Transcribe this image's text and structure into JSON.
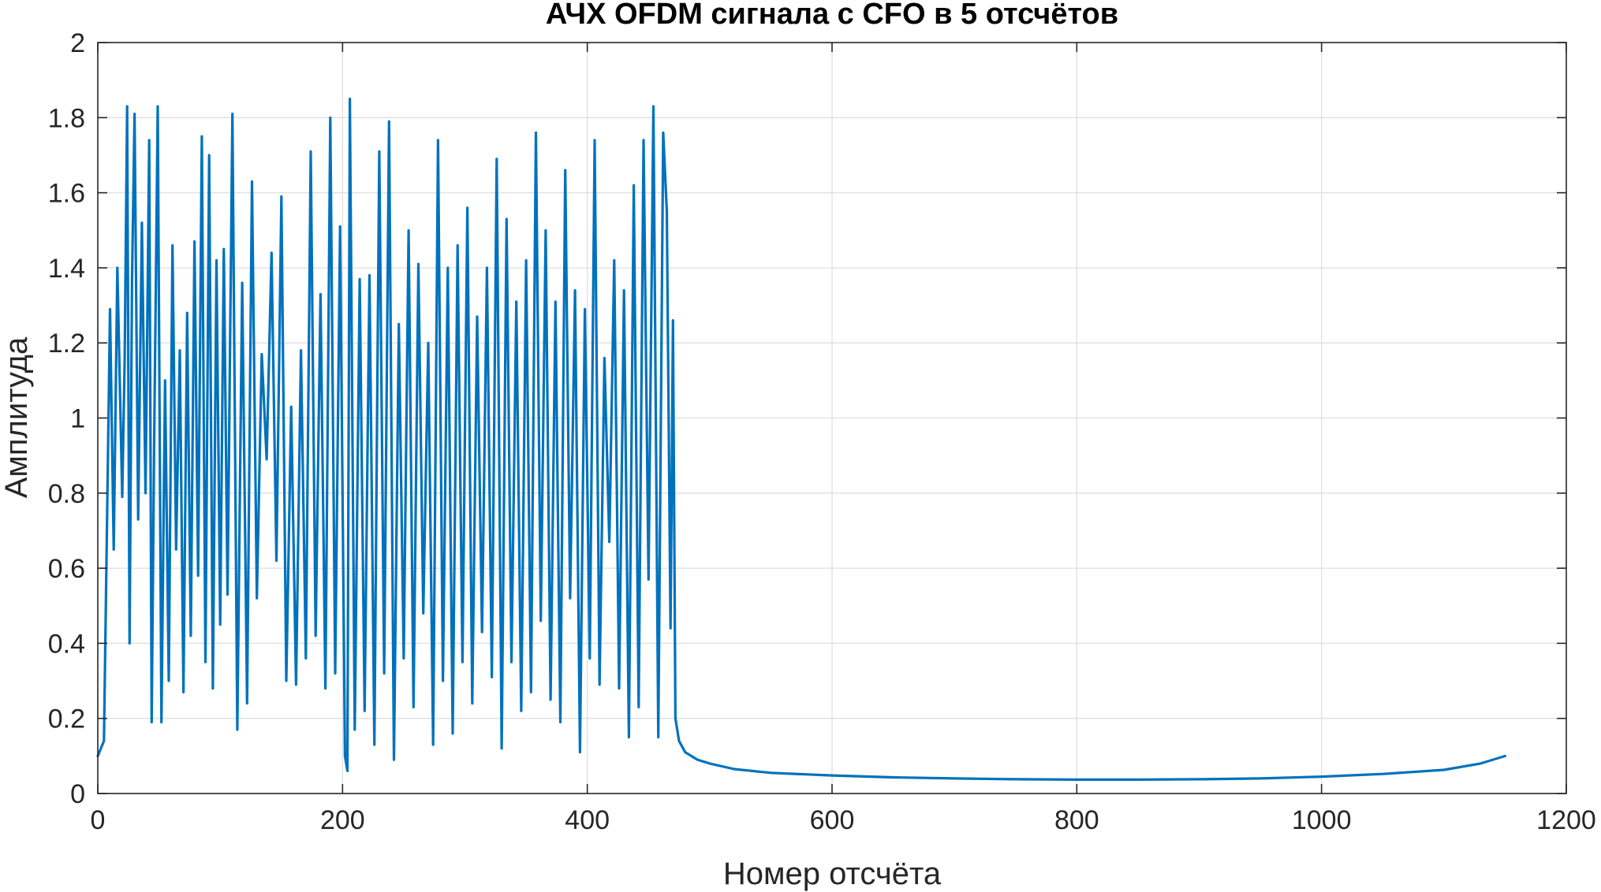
{
  "chart_data": {
    "type": "line",
    "title": "АЧХ OFDM сигнала с CFO в 5 отсчётов",
    "xlabel": "Номер отсчёта",
    "ylabel": "Амплитуда",
    "xlim": [
      0,
      1200
    ],
    "ylim": [
      0,
      2
    ],
    "xticks": [
      0,
      200,
      400,
      600,
      800,
      1000,
      1200
    ],
    "yticks": [
      0,
      0.2,
      0.4,
      0.6,
      0.8,
      1,
      1.2,
      1.4,
      1.6,
      1.8,
      2
    ],
    "xtick_labels": [
      "0",
      "200",
      "400",
      "600",
      "800",
      "1000",
      "1200"
    ],
    "ytick_labels": [
      "0",
      "0.2",
      "0.4",
      "0.6",
      "0.8",
      "1",
      "1.2",
      "1.4",
      "1.6",
      "1.8",
      "2"
    ],
    "grid": true,
    "color": "#0072BD",
    "series": [
      {
        "x": [
          0,
          5,
          10,
          13,
          16,
          20,
          22,
          24,
          26,
          28,
          30,
          33,
          36,
          39,
          42,
          44,
          46,
          49,
          52,
          55,
          58,
          61,
          64,
          67,
          70,
          73,
          76,
          79,
          82,
          85,
          88,
          91,
          94,
          97,
          100,
          103,
          106,
          110,
          114,
          118,
          122,
          126,
          130,
          134,
          138,
          142,
          146,
          150,
          154,
          158,
          162,
          166,
          170,
          174,
          178,
          182,
          186,
          190,
          194,
          198,
          202,
          204,
          206,
          210,
          214,
          218,
          222,
          226,
          230,
          234,
          238,
          242,
          246,
          250,
          254,
          258,
          262,
          266,
          270,
          274,
          278,
          282,
          286,
          290,
          294,
          298,
          302,
          306,
          310,
          314,
          318,
          322,
          326,
          330,
          334,
          338,
          342,
          346,
          350,
          354,
          358,
          362,
          366,
          370,
          374,
          378,
          382,
          386,
          390,
          394,
          398,
          402,
          406,
          410,
          414,
          418,
          422,
          426,
          430,
          434,
          438,
          442,
          446,
          450,
          454,
          458,
          462,
          465,
          468,
          470,
          472,
          475,
          480,
          490,
          500,
          520,
          550,
          600,
          650,
          700,
          750,
          800,
          850,
          900,
          950,
          1000,
          1050,
          1100,
          1130,
          1150
        ],
        "y": [
          0.1,
          0.14,
          1.29,
          0.65,
          1.4,
          0.79,
          1.16,
          1.83,
          0.4,
          1.37,
          1.81,
          0.73,
          1.52,
          0.8,
          1.74,
          0.19,
          0.92,
          1.83,
          0.19,
          1.1,
          0.3,
          1.46,
          0.65,
          1.18,
          0.27,
          1.28,
          0.42,
          1.47,
          0.58,
          1.75,
          0.35,
          1.7,
          0.28,
          1.42,
          0.45,
          1.45,
          0.53,
          1.81,
          0.17,
          1.36,
          0.24,
          1.63,
          0.52,
          1.17,
          0.89,
          1.44,
          0.62,
          1.59,
          0.3,
          1.03,
          0.29,
          1.18,
          0.36,
          1.71,
          0.42,
          1.33,
          0.28,
          1.8,
          0.32,
          1.51,
          0.1,
          0.06,
          1.85,
          0.17,
          1.37,
          0.22,
          1.38,
          0.13,
          1.71,
          0.32,
          1.79,
          0.09,
          1.25,
          0.36,
          1.5,
          0.23,
          1.41,
          0.48,
          1.2,
          0.13,
          1.74,
          0.3,
          1.4,
          0.16,
          1.46,
          0.35,
          1.56,
          0.24,
          1.27,
          0.43,
          1.4,
          0.31,
          1.69,
          0.12,
          1.53,
          0.35,
          1.31,
          0.22,
          1.42,
          0.27,
          1.76,
          0.46,
          1.5,
          0.25,
          1.31,
          0.19,
          1.66,
          0.52,
          1.34,
          0.11,
          1.29,
          0.36,
          1.74,
          0.29,
          1.16,
          0.67,
          1.42,
          0.28,
          1.34,
          0.15,
          1.62,
          0.23,
          1.74,
          0.57,
          1.83,
          0.15,
          1.76,
          1.55,
          0.44,
          1.26,
          0.2,
          0.14,
          0.11,
          0.09,
          0.08,
          0.065,
          0.055,
          0.048,
          0.043,
          0.04,
          0.038,
          0.037,
          0.037,
          0.038,
          0.04,
          0.045,
          0.052,
          0.063,
          0.08,
          0.1
        ]
      }
    ]
  }
}
